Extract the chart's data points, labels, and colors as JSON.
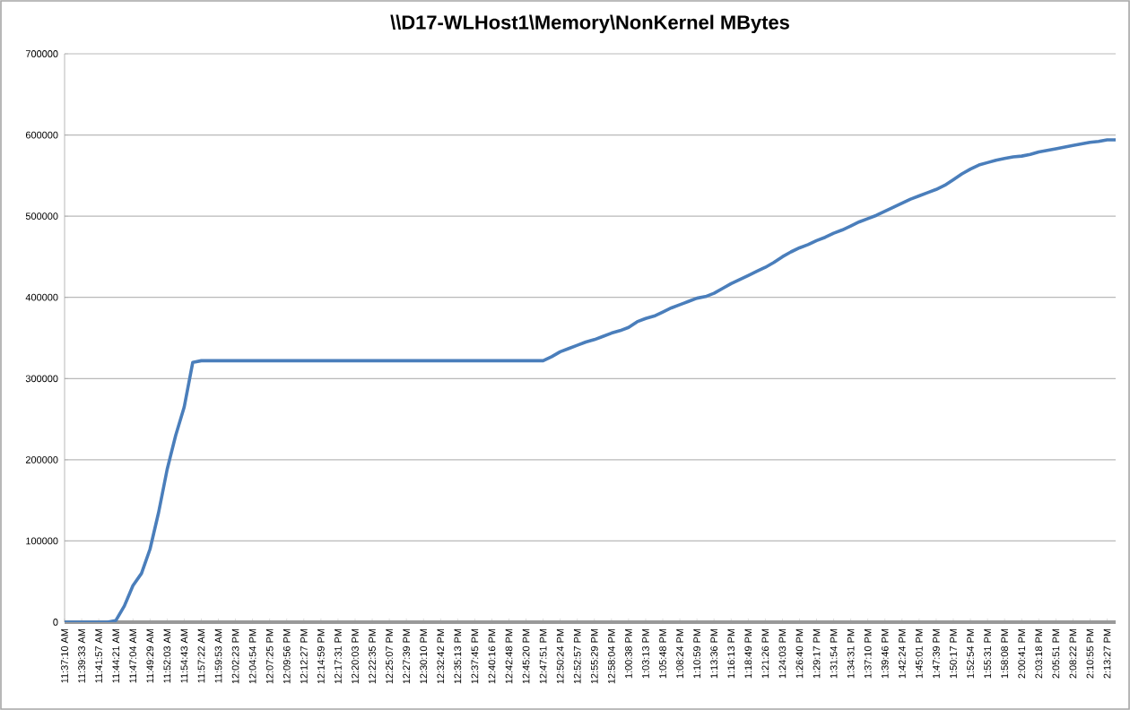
{
  "chart_data": {
    "type": "line",
    "title": "\\\\D17-WLHost1\\Memory\\NonKernel MBytes",
    "categories": [
      "11:37:10 AM",
      null,
      "11:39:33 AM",
      null,
      "11:41:57 AM",
      null,
      "11:44:21 AM",
      null,
      "11:47:04 AM",
      null,
      "11:49:29 AM",
      null,
      "11:52:03 AM",
      null,
      "11:54:43 AM",
      null,
      "11:57:22 AM",
      null,
      "11:59:53 AM",
      null,
      "12:02:23 PM",
      null,
      "12:04:54 PM",
      null,
      "12:07:25 PM",
      null,
      "12:09:56 PM",
      null,
      "12:12:27 PM",
      null,
      "12:14:59 PM",
      null,
      "12:17:31 PM",
      null,
      "12:20:03 PM",
      null,
      "12:22:35 PM",
      null,
      "12:25:07 PM",
      null,
      "12:27:39 PM",
      null,
      "12:30:10 PM",
      null,
      "12:32:42 PM",
      null,
      "12:35:13 PM",
      null,
      "12:37:45 PM",
      null,
      "12:40:16 PM",
      null,
      "12:42:48 PM",
      null,
      "12:45:20 PM",
      null,
      "12:47:51 PM",
      null,
      "12:50:24 PM",
      null,
      "12:52:57 PM",
      null,
      "12:55:29 PM",
      null,
      "12:58:04 PM",
      null,
      "1:00:38 PM",
      null,
      "1:03:13 PM",
      null,
      "1:05:48 PM",
      null,
      "1:08:24 PM",
      null,
      "1:10:59 PM",
      null,
      "1:13:36 PM",
      null,
      "1:16:13 PM",
      null,
      "1:18:49 PM",
      null,
      "1:21:26 PM",
      null,
      "1:24:03 PM",
      null,
      "1:26:40 PM",
      null,
      "1:29:17 PM",
      null,
      "1:31:54 PM",
      null,
      "1:34:31 PM",
      null,
      "1:37:10 PM",
      null,
      "1:39:46 PM",
      null,
      "1:42:24 PM",
      null,
      "1:45:01 PM",
      null,
      "1:47:39 PM",
      null,
      "1:50:17 PM",
      null,
      "1:52:54 PM",
      null,
      "1:55:31 PM",
      null,
      "1:58:08 PM",
      null,
      "2:00:41 PM",
      null,
      "2:03:18 PM",
      null,
      "2:05:51 PM",
      null,
      "2:08:22 PM",
      null,
      "2:10:55 PM",
      null,
      "2:13:27 PM",
      null
    ],
    "values": [
      0,
      0,
      0,
      0,
      0,
      0,
      2000,
      20000,
      45000,
      60000,
      90000,
      135000,
      188000,
      230000,
      265000,
      320000,
      322000,
      322000,
      322000,
      322000,
      322000,
      322000,
      322000,
      322000,
      322000,
      322000,
      322000,
      322000,
      322000,
      322000,
      322000,
      322000,
      322000,
      322000,
      322000,
      322000,
      322000,
      322000,
      322000,
      322000,
      322000,
      322000,
      322000,
      322000,
      322000,
      322000,
      322000,
      322000,
      322000,
      322000,
      322000,
      322000,
      322000,
      322000,
      322000,
      322000,
      322000,
      327000,
      333000,
      337000,
      341000,
      345000,
      348000,
      352000,
      356000,
      359000,
      363000,
      370000,
      374000,
      377000,
      382000,
      387000,
      391000,
      395000,
      399000,
      401000,
      405000,
      411000,
      417000,
      422000,
      427000,
      432000,
      437000,
      443000,
      450000,
      456000,
      461000,
      465000,
      470000,
      474000,
      479000,
      483000,
      488000,
      493000,
      497000,
      501000,
      506000,
      511000,
      516000,
      521000,
      525000,
      529000,
      533000,
      538000,
      545000,
      552000,
      558000,
      563000,
      566000,
      569000,
      571000,
      573000,
      574000,
      576000,
      579000,
      581000,
      583000,
      585000,
      587000,
      589000,
      591000,
      592000,
      594000,
      594000
    ],
    "color": "#4a7ebb",
    "ylim": [
      0,
      700000
    ],
    "yticks": [
      0,
      100000,
      200000,
      300000,
      400000,
      500000,
      600000,
      700000
    ],
    "grid": "y"
  }
}
